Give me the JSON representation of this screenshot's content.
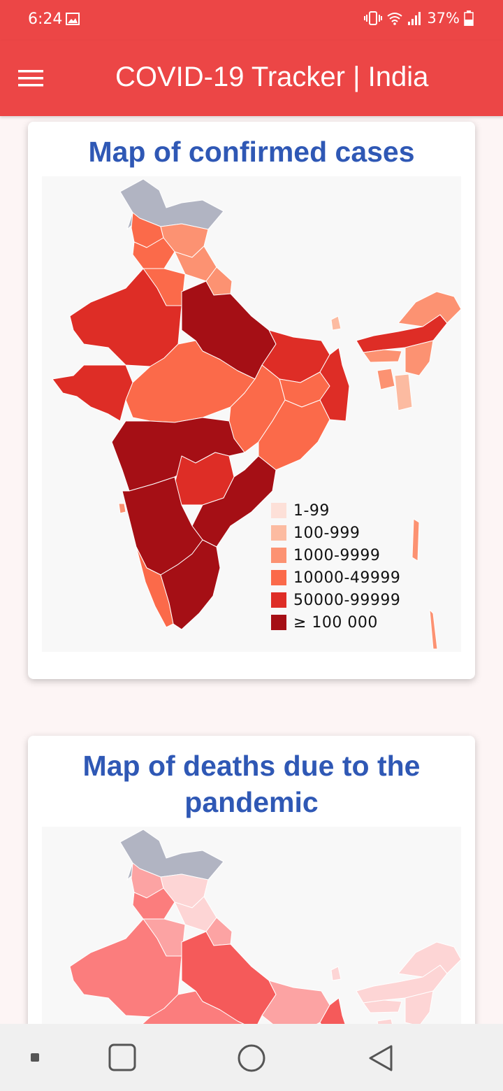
{
  "status_bar": {
    "time": "6:24",
    "battery": "37%"
  },
  "app_bar": {
    "title": "COVID-19 Tracker | India"
  },
  "cards": [
    {
      "title": "Map of confirmed cases",
      "legend": [
        {
          "label": "1-99",
          "color": "#fde0d8"
        },
        {
          "label": "100-999",
          "color": "#fcbba1"
        },
        {
          "label": "1000-9999",
          "color": "#fc9272"
        },
        {
          "label": "10000-49999",
          "color": "#fb6a4a"
        },
        {
          "label": "50000-99999",
          "color": "#de2d26"
        },
        {
          "label": "≥ 100 000",
          "color": "#a50f15"
        }
      ]
    },
    {
      "title": "Map of deaths due to the pandemic"
    }
  ],
  "colors": {
    "primary": "#ec4646",
    "title_blue": "#2f58b5",
    "no_data_gray": "#b1b4c2"
  }
}
